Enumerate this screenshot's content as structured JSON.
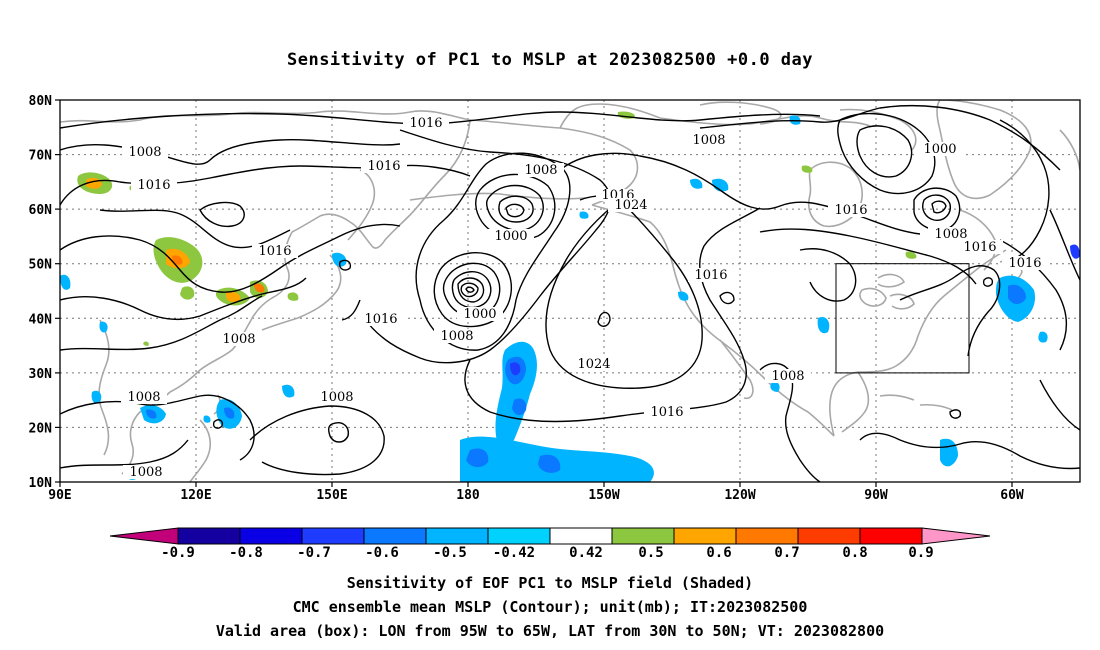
{
  "title": "Sensitivity of PC1 to MSLP at 2023082500 +0.0 day",
  "map": {
    "lon_range": [
      "90E",
      "60W (extends to ~50W)"
    ],
    "lat_range": [
      "10N",
      "80N"
    ],
    "lat_labels": [
      "80N",
      "70N",
      "60N",
      "50N",
      "40N",
      "30N",
      "20N",
      "10N"
    ],
    "lon_labels": [
      "90E",
      "120E",
      "150E",
      "180",
      "150W",
      "120W",
      "90W",
      "60W"
    ],
    "contour_labels": [
      {
        "text": "1016",
        "id": "c1016-a"
      },
      {
        "text": "1008",
        "id": "c1008-a"
      },
      {
        "text": "1016",
        "id": "c1016-b"
      },
      {
        "text": "1016",
        "id": "c1016-c"
      },
      {
        "text": "1008",
        "id": "c1008-b"
      },
      {
        "text": "1016",
        "id": "c1016-d"
      },
      {
        "text": "1000",
        "id": "c1000-a"
      },
      {
        "text": "1016",
        "id": "c1016-e"
      },
      {
        "text": "1024",
        "id": "c1024-a"
      },
      {
        "text": "1008",
        "id": "c1008-c"
      },
      {
        "text": "1000",
        "id": "c1000-b"
      },
      {
        "text": "1016",
        "id": "c1016-f"
      },
      {
        "text": "1000",
        "id": "c1000-c"
      },
      {
        "text": "1008",
        "id": "c1008-d"
      },
      {
        "text": "1016",
        "id": "c1016-g"
      },
      {
        "text": "1016",
        "id": "c1016-h"
      },
      {
        "text": "1016",
        "id": "c1016-i"
      },
      {
        "text": "1016",
        "id": "c1016-j"
      },
      {
        "text": "1008",
        "id": "c1008-e"
      },
      {
        "text": "1008",
        "id": "c1008-f"
      },
      {
        "text": "1024",
        "id": "c1024-b"
      },
      {
        "text": "1008",
        "id": "c1008-g"
      },
      {
        "text": "1008",
        "id": "c1008-h"
      },
      {
        "text": "1016",
        "id": "c1016-k"
      },
      {
        "text": "1008",
        "id": "c1008-i"
      },
      {
        "text": "1008",
        "id": "c1008-j"
      },
      {
        "text": "1016",
        "id": "c1016-l"
      }
    ],
    "valid_area_box": {
      "lon_west": "95W",
      "lon_east": "65W",
      "lat_south": "30N",
      "lat_north": "50N"
    }
  },
  "colorbar": {
    "ticks": [
      "-0.9",
      "-0.8",
      "-0.7",
      "-0.6",
      "-0.5",
      "-0.42",
      "0.42",
      "0.5",
      "0.6",
      "0.7",
      "0.8",
      "0.9"
    ],
    "colors": [
      "#c2007a",
      "#1400a0",
      "#0a00e6",
      "#1e3cff",
      "#0a78ff",
      "#00b4ff",
      "#00d2ff",
      "#ffffff",
      "#8dc63f",
      "#ffa500",
      "#ff7800",
      "#ff3c00",
      "#ff0000",
      "#ff96c8"
    ]
  },
  "captions": [
    "Sensitivity of EOF PC1 to MSLP field (Shaded)",
    "CMC ensemble mean MSLP (Contour); unit(mb); IT:2023082500",
    "Valid area (box): LON from 95W to 65W, LAT from 30N to 50N; VT: 2023082800"
  ]
}
